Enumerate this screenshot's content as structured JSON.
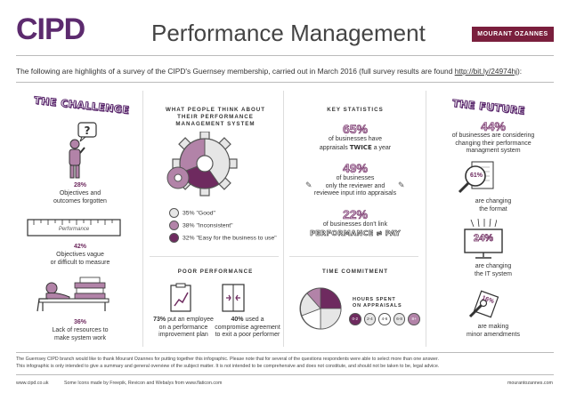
{
  "header": {
    "logo": "CIPD",
    "title": "Performance Management",
    "badge": "MOURANT OZANNES"
  },
  "intro": {
    "text": "The following are highlights of a survey of the CIPD's Guernsey membership, carried out in March 2016 (full survey results are found ",
    "link": "http://bit.ly/24974hj",
    "suffix": "):"
  },
  "challenge": {
    "heading": "THE CHALLENGE",
    "items": [
      {
        "pct": "28%",
        "text1": "Objectives and",
        "text2": "outcomes forgotten"
      },
      {
        "pct": "42%",
        "text1": "Objectives vague",
        "text2": "or difficult to measure",
        "ruler_label": "Performance"
      },
      {
        "pct": "36%",
        "text1": "Lack of resources to",
        "text2": "make system work"
      }
    ]
  },
  "opinion": {
    "heading1": "WHAT PEOPLE THINK ABOUT",
    "heading2": "THEIR PERFORMANCE",
    "heading3": "MANAGEMENT SYSTEM",
    "legend": [
      {
        "pct": "35%",
        "label": "\"Good\"",
        "color": "#e6e6e6"
      },
      {
        "pct": "38%",
        "label": "\"Inconsistent\"",
        "color": "#b283a8"
      },
      {
        "pct": "32%",
        "label": "\"Easy for the business to use\"",
        "color": "#6e2a5f"
      }
    ]
  },
  "key_stats": {
    "heading": "KEY STATISTICS",
    "s1": {
      "num": "65%",
      "line1": "of businesses have",
      "line2a": "appraisals",
      "emph": "TWICE",
      "line2b": "a year"
    },
    "s2": {
      "num": "49%",
      "line1": "of businesses",
      "line2": "only the reviewer and",
      "line3": "reviewee input into appraisals"
    },
    "s3": {
      "num": "22%",
      "line1": "of businesses don't link",
      "emph": "PERFORMANCE ≠ PAY"
    }
  },
  "future": {
    "heading": "THE FUTURE",
    "s1": {
      "num": "44%",
      "line1": "of businesses are considering",
      "line2": "changing their performance",
      "line3": "managment system"
    },
    "s2": {
      "num": "61%",
      "line1": "are changing",
      "line2": "the format"
    },
    "s3": {
      "num": "24%",
      "line1": "are changing",
      "line2": "the IT system"
    },
    "s4": {
      "num": "16%",
      "line1": "are making",
      "line2": "minor amendments"
    }
  },
  "poor": {
    "heading": "POOR PERFORMANCE",
    "p1": {
      "pct": "73%",
      "line1a": " put an employee",
      "line2": "on a performance",
      "line3": "improvement plan"
    },
    "p2": {
      "pct": "40%",
      "line1a": " used a",
      "line2": "compromise agreement",
      "line3": "to exit a poor performer"
    }
  },
  "time": {
    "heading": "TIME COMMITMENT",
    "legend_title1": "HOURS SPENT",
    "legend_title2": "ON APPRAISALS",
    "buckets": [
      "0-2",
      "2-4",
      "4-6",
      "6-8",
      "8+"
    ]
  },
  "footer": {
    "thanks": "The Guernsey CIPD branch would like to thank Mourant Ozannes for putting together this infographic. Please note that for several of the questions respondents were able to select more than one answer.",
    "disclaimer": "This infographic is only intended to give a summary and general overview of the subject matter. It is not intended to be comprehensive and does not constitute, and should not be taken to be, legal advice.",
    "left_url": "www.cipd.co.uk",
    "credits": "Some Icons made by Freepik, Revicon and Webalys from www.flaticon.com",
    "right_url": "mourantozannes.com"
  },
  "colors": {
    "purple": "#6e2a5f",
    "light_purple": "#b283a8",
    "badge": "#7a1f3d"
  }
}
